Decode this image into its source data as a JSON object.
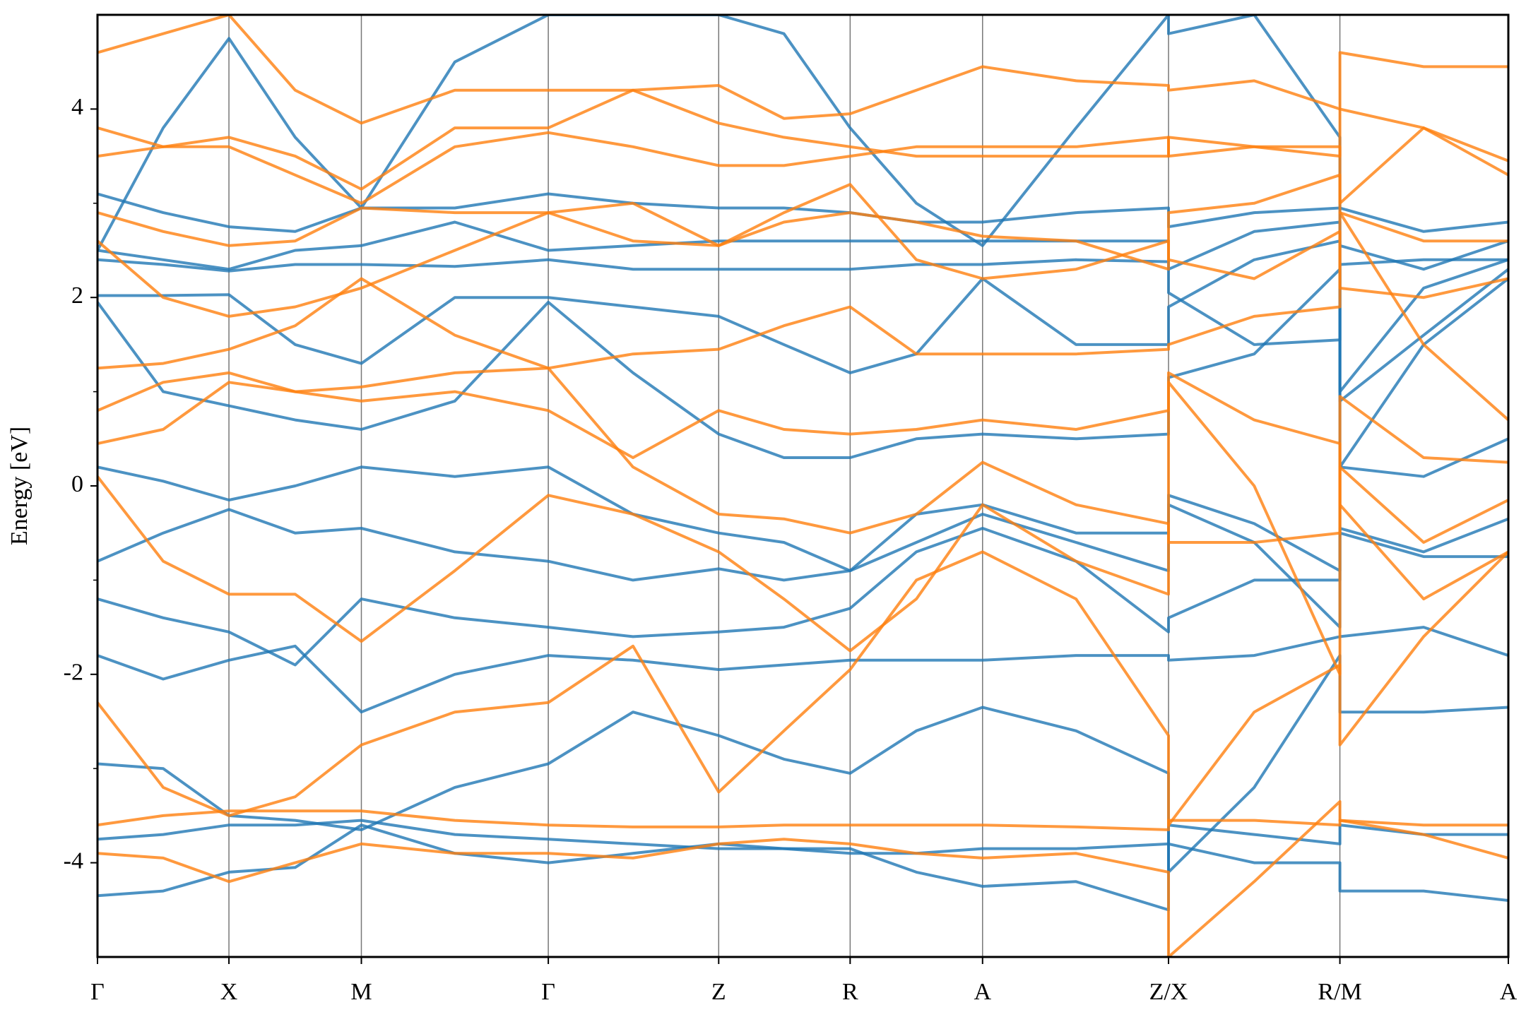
{
  "chart_data": {
    "type": "line",
    "ylabel": "Energy [eV]",
    "x": [
      0,
      0.675,
      1.35,
      2.03,
      2.71,
      3.67,
      4.63,
      5.5,
      6.38,
      7.05,
      7.73,
      8.41,
      9.09,
      10.05,
      11.0,
      11.0,
      11.88,
      12.76,
      12.76,
      13.62,
      14.49
    ],
    "xlim": [
      0,
      14.49
    ],
    "xticks": [
      {
        "value": 0,
        "label": "Γ"
      },
      {
        "value": 1.35,
        "label": "X"
      },
      {
        "value": 2.71,
        "label": "M"
      },
      {
        "value": 4.63,
        "label": "Γ"
      },
      {
        "value": 6.38,
        "label": "Z"
      },
      {
        "value": 7.73,
        "label": "R"
      },
      {
        "value": 9.09,
        "label": "A"
      },
      {
        "value": 11.0,
        "label": "Z/X"
      },
      {
        "value": 12.76,
        "label": "R/M"
      },
      {
        "value": 14.49,
        "label": "A"
      }
    ],
    "ylim": [
      -5,
      5
    ],
    "yticks": [
      -4,
      -2,
      0,
      2,
      4
    ],
    "yminorticks": [
      -3,
      -1,
      1,
      3
    ],
    "grid": "x",
    "series": [
      {
        "color": "#1f77b4",
        "values": [
          -4.35,
          -4.3,
          -4.1,
          -4.05,
          -3.6,
          -3.9,
          -4.0,
          -3.9,
          -3.8,
          -3.85,
          -3.85,
          -4.1,
          -4.25,
          -4.2,
          -4.5,
          -3.8,
          -4.0,
          -4.0,
          -4.3,
          -4.3,
          -4.4
        ]
      },
      {
        "color": "#1f77b4",
        "values": [
          -3.75,
          -3.7,
          -3.6,
          -3.6,
          -3.55,
          -3.7,
          -3.75,
          -3.8,
          -3.85,
          -3.85,
          -3.9,
          -3.9,
          -3.85,
          -3.85,
          -3.8,
          -3.6,
          -3.7,
          -3.8,
          -3.6,
          -3.7,
          -3.7
        ]
      },
      {
        "color": "#1f77b4",
        "values": [
          -2.95,
          -3.0,
          -3.5,
          -3.55,
          -3.65,
          -3.2,
          -2.95,
          -2.4,
          -2.65,
          -2.9,
          -3.05,
          -2.6,
          -2.35,
          -2.6,
          -3.05,
          -4.1,
          -3.2,
          -1.8,
          -2.4,
          -2.4,
          -2.35
        ]
      },
      {
        "color": "#1f77b4",
        "values": [
          -1.8,
          -2.05,
          -1.85,
          -1.7,
          -2.4,
          -2.0,
          -1.8,
          -1.85,
          -1.95,
          -1.9,
          -1.85,
          -1.85,
          -1.85,
          -1.8,
          -1.8,
          -1.85,
          -1.8,
          -1.6,
          -1.6,
          -1.5,
          -1.8
        ]
      },
      {
        "color": "#1f77b4",
        "values": [
          -1.2,
          -1.4,
          -1.55,
          -1.9,
          -1.2,
          -1.4,
          -1.5,
          -1.6,
          -1.55,
          -1.5,
          -1.3,
          -0.7,
          -0.45,
          -0.8,
          -1.55,
          -1.4,
          -1.0,
          -1.0,
          -0.5,
          -0.75,
          -0.75
        ]
      },
      {
        "color": "#1f77b4",
        "values": [
          -0.8,
          -0.5,
          -0.25,
          -0.5,
          -0.45,
          -0.7,
          -0.8,
          -1.0,
          -0.88,
          -1.0,
          -0.9,
          -0.6,
          -0.3,
          -0.6,
          -0.9,
          -0.1,
          -0.4,
          -0.9,
          -0.45,
          -0.7,
          -0.35
        ]
      },
      {
        "color": "#1f77b4",
        "values": [
          0.2,
          0.05,
          -0.15,
          0.0,
          0.2,
          0.1,
          0.2,
          -0.3,
          -0.5,
          -0.6,
          -0.9,
          -0.3,
          -0.2,
          -0.5,
          -0.5,
          -0.2,
          -0.6,
          -1.5,
          0.2,
          0.1,
          0.5
        ]
      },
      {
        "color": "#1f77b4",
        "values": [
          1.95,
          1.0,
          0.85,
          0.7,
          0.6,
          0.9,
          1.95,
          1.2,
          0.55,
          0.3,
          0.3,
          0.5,
          0.55,
          0.5,
          0.55,
          1.15,
          1.4,
          2.3,
          0.9,
          1.6,
          2.3
        ]
      },
      {
        "color": "#1f77b4",
        "values": [
          2.02,
          2.02,
          2.03,
          1.5,
          1.3,
          2.0,
          2.0,
          1.9,
          1.8,
          1.5,
          1.2,
          1.4,
          2.2,
          1.5,
          1.5,
          1.9,
          2.4,
          2.6,
          1.0,
          2.1,
          2.4
        ]
      },
      {
        "color": "#1f77b4",
        "values": [
          2.4,
          2.35,
          2.28,
          2.35,
          2.35,
          2.33,
          2.4,
          2.3,
          2.3,
          2.3,
          2.3,
          2.35,
          2.35,
          2.4,
          2.38,
          2.05,
          1.5,
          1.55,
          2.35,
          2.4,
          2.4
        ]
      },
      {
        "color": "#1f77b4",
        "values": [
          2.5,
          2.4,
          2.3,
          2.5,
          2.55,
          2.8,
          2.5,
          2.55,
          2.6,
          2.6,
          2.6,
          2.6,
          2.6,
          2.6,
          2.6,
          2.3,
          2.7,
          2.8,
          2.55,
          2.3,
          2.6
        ]
      },
      {
        "color": "#1f77b4",
        "values": [
          3.1,
          2.9,
          2.75,
          2.7,
          2.95,
          2.95,
          3.1,
          3.0,
          2.95,
          2.95,
          2.9,
          2.8,
          2.8,
          2.9,
          2.95,
          2.75,
          2.9,
          2.95,
          2.95,
          2.7,
          2.8
        ]
      },
      {
        "color": "#1f77b4",
        "values": [
          2.5,
          3.8,
          4.75,
          3.7,
          2.95,
          4.5,
          5.0,
          5.0,
          5.0,
          4.8,
          3.8,
          3.0,
          2.55,
          3.8,
          5.0,
          4.8,
          5.0,
          3.7,
          0.2,
          1.5,
          2.2
        ]
      },
      {
        "color": "#ff7f0e",
        "values": [
          -3.9,
          -3.95,
          -4.2,
          -4.0,
          -3.8,
          -3.9,
          -3.9,
          -3.95,
          -3.8,
          -3.75,
          -3.8,
          -3.9,
          -3.95,
          -3.9,
          -4.1,
          -5.0,
          -4.2,
          -3.35,
          -3.55,
          -3.7,
          -3.95
        ]
      },
      {
        "color": "#ff7f0e",
        "values": [
          -3.6,
          -3.5,
          -3.45,
          -3.45,
          -3.45,
          -3.55,
          -3.6,
          -3.62,
          -3.62,
          -3.6,
          -3.6,
          -3.6,
          -3.6,
          -3.62,
          -3.65,
          -3.55,
          -3.55,
          -3.6,
          -3.55,
          -3.6,
          -3.6
        ]
      },
      {
        "color": "#ff7f0e",
        "values": [
          -2.3,
          -3.2,
          -3.5,
          -3.3,
          -2.75,
          -2.4,
          -2.3,
          -1.7,
          -3.25,
          -2.6,
          -1.95,
          -1.0,
          -0.7,
          -1.2,
          -2.65,
          -3.6,
          -2.4,
          -1.9,
          -2.75,
          -1.6,
          -0.7
        ]
      },
      {
        "color": "#ff7f0e",
        "values": [
          0.1,
          -0.8,
          -1.15,
          -1.15,
          -1.65,
          -0.9,
          -0.1,
          -0.3,
          -0.7,
          -1.2,
          -1.75,
          -1.2,
          -0.2,
          -0.8,
          -1.15,
          1.1,
          0.0,
          -2.0,
          0.2,
          -0.6,
          -0.15
        ]
      },
      {
        "color": "#ff7f0e",
        "values": [
          0.45,
          0.6,
          1.1,
          1.0,
          1.05,
          1.2,
          1.25,
          0.2,
          -0.3,
          -0.35,
          -0.5,
          -0.3,
          0.25,
          -0.2,
          -0.4,
          -0.6,
          -0.6,
          -0.5,
          0.95,
          0.3,
          0.25
        ]
      },
      {
        "color": "#ff7f0e",
        "values": [
          0.8,
          1.1,
          1.2,
          1.0,
          0.9,
          1.0,
          0.8,
          0.3,
          0.8,
          0.6,
          0.55,
          0.6,
          0.7,
          0.6,
          0.8,
          1.2,
          0.7,
          0.45,
          -0.2,
          -1.2,
          -0.7
        ]
      },
      {
        "color": "#ff7f0e",
        "values": [
          1.25,
          1.3,
          1.45,
          1.7,
          2.2,
          1.6,
          1.25,
          1.4,
          1.45,
          1.7,
          1.9,
          1.4,
          1.4,
          1.4,
          1.45,
          1.5,
          1.8,
          1.9,
          2.9,
          1.5,
          0.7
        ]
      },
      {
        "color": "#ff7f0e",
        "values": [
          2.6,
          2.0,
          1.8,
          1.9,
          2.1,
          2.5,
          2.9,
          2.6,
          2.55,
          2.9,
          3.2,
          2.4,
          2.2,
          2.3,
          2.6,
          2.4,
          2.2,
          2.7,
          2.1,
          2.0,
          2.2
        ]
      },
      {
        "color": "#ff7f0e",
        "values": [
          2.9,
          2.7,
          2.55,
          2.6,
          2.95,
          2.9,
          2.9,
          3.0,
          2.55,
          2.8,
          2.9,
          2.8,
          2.65,
          2.6,
          2.3,
          2.9,
          3.0,
          3.3,
          2.9,
          2.6,
          2.6
        ]
      },
      {
        "color": "#ff7f0e",
        "values": [
          3.5,
          3.6,
          3.6,
          3.3,
          3.0,
          3.6,
          3.75,
          3.6,
          3.4,
          3.4,
          3.5,
          3.6,
          3.6,
          3.6,
          3.7,
          3.5,
          3.6,
          3.6,
          3.0,
          3.8,
          3.3
        ]
      },
      {
        "color": "#ff7f0e",
        "values": [
          3.8,
          3.6,
          3.7,
          3.5,
          3.15,
          3.8,
          3.8,
          4.2,
          4.25,
          3.9,
          3.95,
          4.2,
          4.45,
          4.3,
          4.25,
          4.2,
          4.3,
          4.0,
          4.6,
          4.45,
          4.45
        ]
      },
      {
        "color": "#ff7f0e",
        "values": [
          4.6,
          4.8,
          5.0,
          4.2,
          3.85,
          4.2,
          4.2,
          4.2,
          3.85,
          3.7,
          3.6,
          3.5,
          3.5,
          3.5,
          3.5,
          3.7,
          3.6,
          3.5,
          4.0,
          3.8,
          3.45
        ]
      }
    ]
  }
}
